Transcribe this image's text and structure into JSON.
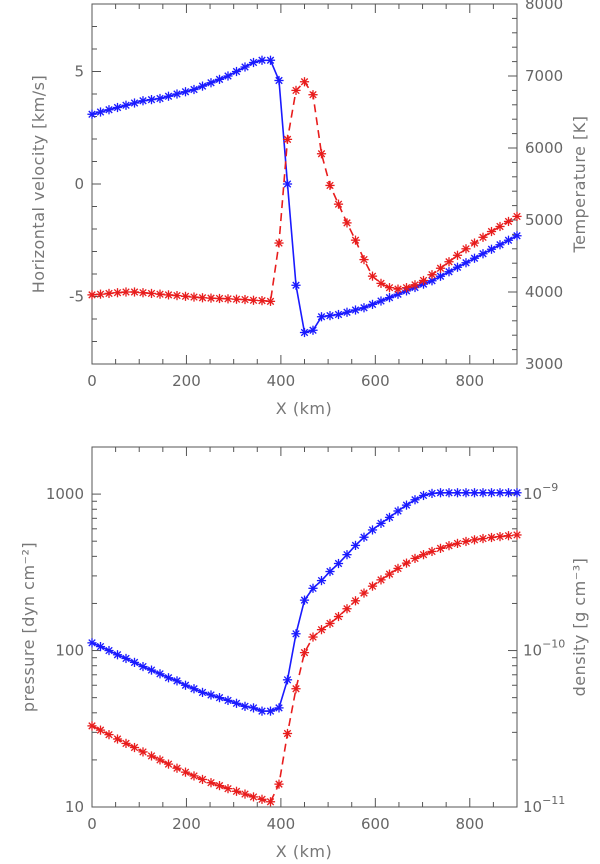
{
  "chart_data": [
    {
      "id": "top",
      "type": "line",
      "xlabel": "X (km)",
      "ylabel_left": "Horizontal velocity [km/s]",
      "ylabel_right": "Temperature [K]",
      "xlim": [
        0,
        900
      ],
      "ylim_left": [
        -8,
        8
      ],
      "ylim_right": [
        3000,
        8000
      ],
      "x_ticks": [
        0,
        200,
        400,
        600,
        800
      ],
      "x_tick_labels": [
        "0",
        "200",
        "400",
        "600",
        "800"
      ],
      "y_left_ticks": [
        5,
        0,
        -5
      ],
      "y_left_tick_labels": [
        "5",
        "0",
        "-5"
      ],
      "y_right_ticks": [
        8000,
        7000,
        6000,
        5000,
        4000,
        3000
      ],
      "y_right_tick_labels": [
        "8000",
        "7000",
        "6000",
        "5000",
        "4000",
        "3000"
      ],
      "series": [
        {
          "name": "Horizontal velocity",
          "axis": "left",
          "color": "#1a1aff",
          "style": "solid",
          "x": [
            0,
            18,
            36,
            54,
            72,
            90,
            108,
            126,
            144,
            162,
            180,
            198,
            216,
            234,
            252,
            270,
            288,
            306,
            324,
            342,
            360,
            378,
            396,
            414,
            432,
            450,
            468,
            486,
            504,
            522,
            540,
            558,
            576,
            594,
            612,
            630,
            648,
            666,
            684,
            702,
            720,
            738,
            756,
            774,
            792,
            810,
            828,
            846,
            864,
            882,
            900
          ],
          "y": [
            3.1,
            3.2,
            3.3,
            3.4,
            3.5,
            3.6,
            3.7,
            3.75,
            3.8,
            3.9,
            4.0,
            4.1,
            4.2,
            4.35,
            4.5,
            4.65,
            4.8,
            5.0,
            5.2,
            5.4,
            5.5,
            5.5,
            4.6,
            0.0,
            -4.5,
            -6.6,
            -6.5,
            -5.9,
            -5.85,
            -5.8,
            -5.7,
            -5.6,
            -5.5,
            -5.35,
            -5.2,
            -5.05,
            -4.9,
            -4.75,
            -4.6,
            -4.45,
            -4.3,
            -4.1,
            -3.9,
            -3.7,
            -3.5,
            -3.3,
            -3.1,
            -2.9,
            -2.7,
            -2.5,
            -2.3
          ]
        },
        {
          "name": "Temperature",
          "axis": "right",
          "color": "#e81d1d",
          "style": "dashed",
          "x": [
            0,
            18,
            36,
            54,
            72,
            90,
            108,
            126,
            144,
            162,
            180,
            198,
            216,
            234,
            252,
            270,
            288,
            306,
            324,
            342,
            360,
            378,
            396,
            414,
            432,
            450,
            468,
            486,
            504,
            522,
            540,
            558,
            576,
            594,
            612,
            630,
            648,
            666,
            684,
            702,
            720,
            738,
            756,
            774,
            792,
            810,
            828,
            846,
            864,
            882,
            900
          ],
          "y": [
            3960,
            3970,
            3980,
            3990,
            4000,
            4000,
            3990,
            3980,
            3970,
            3960,
            3950,
            3940,
            3930,
            3920,
            3915,
            3910,
            3905,
            3900,
            3895,
            3885,
            3880,
            3870,
            4680,
            6120,
            6800,
            6920,
            6740,
            5920,
            5480,
            5220,
            4960,
            4720,
            4450,
            4220,
            4120,
            4060,
            4040,
            4060,
            4100,
            4160,
            4240,
            4330,
            4420,
            4510,
            4600,
            4680,
            4760,
            4840,
            4910,
            4980,
            5050
          ]
        }
      ]
    },
    {
      "id": "bottom",
      "type": "line",
      "xlabel": "X (km)",
      "ylabel_left": "pressure [dyn cm⁻²]",
      "ylabel_right": "density [g cm⁻³]",
      "xlim": [
        0,
        900
      ],
      "ylim_left": [
        10,
        2000
      ],
      "ylim_right": [
        1e-11,
        2e-09
      ],
      "yscale": "log",
      "x_ticks": [
        0,
        200,
        400,
        600,
        800
      ],
      "x_tick_labels": [
        "0",
        "200",
        "400",
        "600",
        "800"
      ],
      "y_left_ticks": [
        1000,
        100,
        10
      ],
      "y_left_tick_labels": [
        "1000",
        "100",
        "10"
      ],
      "y_right_ticks": [
        1e-09,
        1e-10,
        1e-11
      ],
      "y_right_tick_base": "10",
      "y_right_tick_exponents": [
        "−9",
        "−10",
        "−11"
      ],
      "series": [
        {
          "name": "pressure",
          "axis": "left",
          "color": "#1a1aff",
          "style": "solid",
          "x": [
            0,
            18,
            36,
            54,
            72,
            90,
            108,
            126,
            144,
            162,
            180,
            198,
            216,
            234,
            252,
            270,
            288,
            306,
            324,
            342,
            360,
            378,
            396,
            414,
            432,
            450,
            468,
            486,
            504,
            522,
            540,
            558,
            576,
            594,
            612,
            630,
            648,
            666,
            684,
            702,
            720,
            738,
            756,
            774,
            792,
            810,
            828,
            846,
            864,
            882,
            900
          ],
          "y": [
            112,
            106,
            100,
            94,
            89,
            84,
            79,
            75,
            71,
            67,
            64,
            60,
            57,
            54,
            52,
            50,
            48,
            46,
            44,
            43,
            41,
            41,
            43,
            65,
            128,
            210,
            250,
            280,
            320,
            360,
            410,
            470,
            530,
            590,
            650,
            710,
            780,
            850,
            920,
            980,
            1010,
            1020,
            1020,
            1020,
            1020,
            1020,
            1020,
            1020,
            1020,
            1020,
            1020
          ]
        },
        {
          "name": "density",
          "axis": "right",
          "color": "#e81d1d",
          "style": "dashed",
          "x": [
            0,
            18,
            36,
            54,
            72,
            90,
            108,
            126,
            144,
            162,
            180,
            198,
            216,
            234,
            252,
            270,
            288,
            306,
            324,
            342,
            360,
            378,
            396,
            414,
            432,
            450,
            468,
            486,
            504,
            522,
            540,
            558,
            576,
            594,
            612,
            630,
            648,
            666,
            684,
            702,
            720,
            738,
            756,
            774,
            792,
            810,
            828,
            846,
            864,
            882,
            900
          ],
          "y": [
            3.3e-11,
            3.1e-11,
            2.9e-11,
            2.72e-11,
            2.55e-11,
            2.4e-11,
            2.25e-11,
            2.12e-11,
            2e-11,
            1.88e-11,
            1.77e-11,
            1.67e-11,
            1.58e-11,
            1.5e-11,
            1.43e-11,
            1.37e-11,
            1.31e-11,
            1.26e-11,
            1.21e-11,
            1.16e-11,
            1.12e-11,
            1.08e-11,
            1.4e-11,
            2.95e-11,
            5.7e-11,
            9.7e-11,
            1.22e-10,
            1.36e-10,
            1.49e-10,
            1.65e-10,
            1.85e-10,
            2.08e-10,
            2.33e-10,
            2.58e-10,
            2.83e-10,
            3.08e-10,
            3.35e-10,
            3.62e-10,
            3.88e-10,
            4.1e-10,
            4.3e-10,
            4.5e-10,
            4.68e-10,
            4.84e-10,
            4.98e-10,
            5.1e-10,
            5.2e-10,
            5.28e-10,
            5.35e-10,
            5.42e-10,
            5.48e-10
          ]
        }
      ]
    }
  ]
}
